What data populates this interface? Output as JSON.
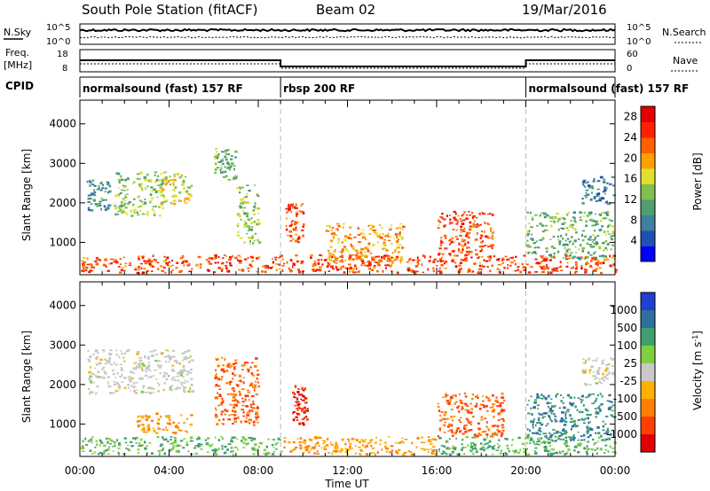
{
  "header": {
    "station": "South Pole Station (fitACF)",
    "beam": "Beam 02",
    "date": "19/Mar/2016"
  },
  "strip_labels": {
    "nsky": "N.Sky",
    "nsky_ticks": [
      "10^5",
      "10^0"
    ],
    "nsearch": "N.Search",
    "nsearch_ticks": [
      "10^5",
      "10^0"
    ],
    "freq": "Freq.",
    "freq_unit": "[MHz]",
    "freq_ticks": [
      "18",
      "8"
    ],
    "nave": "Nave",
    "nave_ticks": [
      "60",
      "0"
    ],
    "cpid": "CPID"
  },
  "cpid_segments": [
    {
      "label": "normalsound (fast) 157 RF",
      "start_h": 0,
      "end_h": 9
    },
    {
      "label": "rbsp 200 RF",
      "start_h": 9,
      "end_h": 20
    },
    {
      "label": "normalsound (fast) 157 RF",
      "start_h": 20,
      "end_h": 24
    }
  ],
  "colors": {
    "power_scale": [
      "#0000ff",
      "#2050b0",
      "#3f7f9f",
      "#4f9f6f",
      "#7fbf4f",
      "#dfdf2f",
      "#ffa000",
      "#ff6000",
      "#ff2000",
      "#e00000"
    ],
    "velocity_scale": [
      "#e00000",
      "#ff4000",
      "#ff8000",
      "#ffb000",
      "#c8c8c8",
      "#7fcf3f",
      "#3f9f6f",
      "#2f6fa0",
      "#2040d0"
    ]
  },
  "chart_data": [
    {
      "type": "heatmap",
      "title": "",
      "ylabel": "Slant Range [km]",
      "xlabel": "",
      "xlim": [
        0,
        24
      ],
      "ylim": [
        180,
        4600
      ],
      "yticks": [
        "1000",
        "2000",
        "3000",
        "4000"
      ],
      "colorbar": {
        "label": "Power [dB]",
        "ticks": [
          "4",
          "8",
          "12",
          "16",
          "20",
          "24",
          "28"
        ],
        "range": [
          0,
          30
        ]
      },
      "features": [
        {
          "t_start": 0.0,
          "t_end": 24.0,
          "r_start": 250,
          "r_end": 700,
          "value": 24
        },
        {
          "t_start": 0.3,
          "t_end": 1.3,
          "r_start": 1800,
          "r_end": 2600,
          "value": 9
        },
        {
          "t_start": 1.5,
          "t_end": 3.8,
          "r_start": 1700,
          "r_end": 2800,
          "value": 14
        },
        {
          "t_start": 3.6,
          "t_end": 5.0,
          "r_start": 2000,
          "r_end": 2800,
          "value": 16
        },
        {
          "t_start": 6.0,
          "t_end": 7.0,
          "r_start": 2600,
          "r_end": 3400,
          "value": 12
        },
        {
          "t_start": 7.0,
          "t_end": 8.0,
          "r_start": 1000,
          "r_end": 2500,
          "value": 14
        },
        {
          "t_start": 9.2,
          "t_end": 10.0,
          "r_start": 1000,
          "r_end": 2000,
          "value": 24
        },
        {
          "t_start": 11.0,
          "t_end": 14.5,
          "r_start": 500,
          "r_end": 1500,
          "value": 20
        },
        {
          "t_start": 16.0,
          "t_end": 18.5,
          "r_start": 700,
          "r_end": 1800,
          "value": 24
        },
        {
          "t_start": 20.0,
          "t_end": 23.9,
          "r_start": 600,
          "r_end": 1800,
          "value": 12
        },
        {
          "t_start": 22.5,
          "t_end": 23.9,
          "r_start": 2000,
          "r_end": 2700,
          "value": 8
        }
      ]
    },
    {
      "type": "heatmap",
      "title": "",
      "ylabel": "Slant Range [km]",
      "xlabel": "Time UT",
      "xlim": [
        0,
        24
      ],
      "ylim": [
        180,
        4600
      ],
      "xticks": [
        "00:00",
        "04:00",
        "08:00",
        "12:00",
        "16:00",
        "20:00",
        "00:00"
      ],
      "yticks": [
        "1000",
        "2000",
        "3000",
        "4000"
      ],
      "colorbar": {
        "label": "Velocity [m s^-1]",
        "ticks": [
          "1000",
          "500",
          "100",
          "25",
          "-25",
          "-100",
          "-500",
          "-1000"
        ]
      },
      "features": [
        {
          "t_start": 0.0,
          "t_end": 9.0,
          "r_start": 250,
          "r_end": 700,
          "value": 100
        },
        {
          "t_start": 9.0,
          "t_end": 16.0,
          "r_start": 250,
          "r_end": 700,
          "value": -100
        },
        {
          "t_start": 16.0,
          "t_end": 24.0,
          "r_start": 250,
          "r_end": 700,
          "value": 100
        },
        {
          "t_start": 0.3,
          "t_end": 5.0,
          "r_start": 1800,
          "r_end": 2900,
          "value": 0
        },
        {
          "t_start": 2.5,
          "t_end": 5.0,
          "r_start": 800,
          "r_end": 1300,
          "value": -100
        },
        {
          "t_start": 6.0,
          "t_end": 8.0,
          "r_start": 1000,
          "r_end": 2700,
          "value": -500
        },
        {
          "t_start": 9.5,
          "t_end": 10.2,
          "r_start": 1000,
          "r_end": 2000,
          "value": -1000
        },
        {
          "t_start": 16.0,
          "t_end": 19.0,
          "r_start": 700,
          "r_end": 1800,
          "value": -500
        },
        {
          "t_start": 20.0,
          "t_end": 23.9,
          "r_start": 600,
          "r_end": 1800,
          "value": 500
        },
        {
          "t_start": 22.5,
          "t_end": 23.9,
          "r_start": 2000,
          "r_end": 2700,
          "value": 0
        }
      ]
    }
  ]
}
